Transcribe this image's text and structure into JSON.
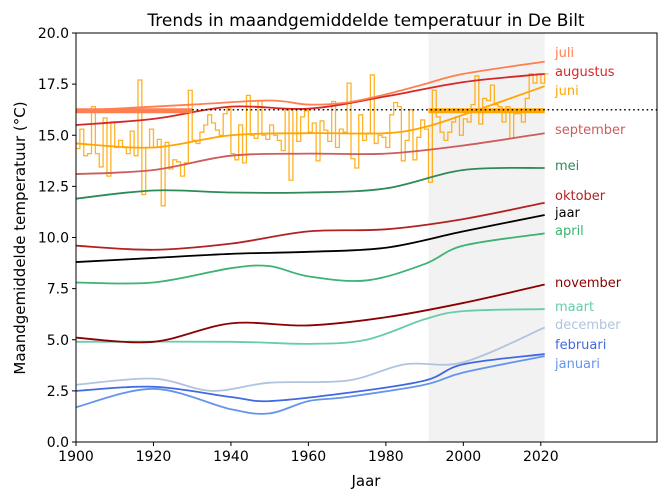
{
  "chart_data": {
    "type": "line",
    "title": "Trends in maandgemiddelde temperatuur in De Bilt",
    "xlabel": "Jaar",
    "ylabel": "Maandgemiddelde temperatuur (°C)",
    "xlim": [
      1900,
      2050
    ],
    "ylim": [
      0,
      20
    ],
    "xticks": [
      "1900",
      "1920",
      "1940",
      "1960",
      "1980",
      "2000",
      "2020"
    ],
    "yticks": [
      "0.0",
      "2.5",
      "5.0",
      "7.5",
      "10.0",
      "12.5",
      "15.0",
      "17.5",
      "20.0"
    ],
    "grid": false,
    "shaded_period": [
      1991,
      2021
    ],
    "reference_line": {
      "y": 16.25,
      "style": "dotted",
      "color": "#000000"
    },
    "normals": [
      {
        "series": "juli",
        "from": 1900,
        "to": 1930,
        "value": 16.2,
        "color": "#ff7f50"
      },
      {
        "series": "juni",
        "from": 1991,
        "to": 2021,
        "value": 16.2,
        "color": "#ffa500"
      }
    ],
    "yearly_series": {
      "series": "juni",
      "color": "#ffa500",
      "start_year": 1900,
      "values": [
        14.35,
        15.3,
        14.0,
        14.1,
        16.4,
        14.1,
        13.45,
        15.85,
        13.0,
        15.65,
        14.4,
        14.75,
        14.4,
        14.1,
        15.2,
        14.0,
        17.7,
        12.1,
        14.4,
        15.3,
        14.4,
        14.8,
        11.55,
        14.65,
        13.35,
        13.8,
        13.7,
        13.0,
        13.65,
        17.2,
        14.75,
        14.6,
        15.15,
        15.5,
        16.0,
        15.6,
        15.25,
        15.0,
        16.05,
        16.3,
        14.1,
        13.8,
        15.5,
        13.65,
        16.95,
        15.0,
        14.85,
        16.7,
        15.0,
        14.8,
        15.5,
        15.0,
        14.75,
        14.25,
        16.25,
        12.8,
        16.3,
        14.7,
        15.9,
        16.2,
        15.15,
        15.6,
        13.75,
        15.7,
        15.25,
        14.7,
        16.65,
        14.4,
        15.3,
        15.15,
        17.55,
        13.85,
        13.4,
        16.0,
        14.75,
        15.1,
        17.95,
        14.6,
        15.0,
        14.9,
        14.4,
        16.0,
        16.6,
        16.4,
        13.75,
        14.75,
        16.25,
        13.8,
        14.9,
        15.75,
        15.3,
        12.7,
        17.2,
        15.9,
        15.15,
        14.75,
        15.15,
        15.65,
        15.9,
        15.0,
        15.8,
        15.65,
        16.5,
        17.9,
        15.55,
        16.8,
        16.7,
        17.45,
        16.5,
        16.4,
        15.65,
        16.4,
        14.85,
        16.05,
        16.05,
        15.65,
        16.8,
        18.0,
        17.55,
        18.0,
        17.55,
        18.0
      ]
    },
    "series": [
      {
        "name": "juli",
        "color": "#ff7f50",
        "x": [
          1900,
          1930,
          1950,
          1960,
          1970,
          1980,
          1990,
          2000,
          2021
        ],
        "y": [
          16.2,
          16.5,
          16.7,
          16.5,
          16.6,
          17.0,
          17.5,
          18.0,
          18.6
        ]
      },
      {
        "name": "augustus",
        "color": "#d62728",
        "x": [
          1900,
          1920,
          1940,
          1960,
          1980,
          2000,
          2021
        ],
        "y": [
          15.5,
          15.8,
          16.4,
          16.3,
          16.9,
          17.6,
          18.0
        ]
      },
      {
        "name": "juni",
        "color": "#ffa500",
        "x": [
          1900,
          1920,
          1940,
          1960,
          1980,
          1990,
          2000,
          2021
        ],
        "y": [
          14.6,
          14.4,
          15.0,
          15.1,
          15.1,
          15.4,
          16.0,
          17.4
        ]
      },
      {
        "name": "september",
        "color": "#cd5c5c",
        "x": [
          1900,
          1920,
          1940,
          1960,
          1980,
          2000,
          2021
        ],
        "y": [
          13.1,
          13.3,
          14.0,
          14.1,
          14.1,
          14.5,
          15.1
        ]
      },
      {
        "name": "mei",
        "color": "#2e8b57",
        "x": [
          1900,
          1920,
          1940,
          1960,
          1980,
          2000,
          2021
        ],
        "y": [
          11.9,
          12.3,
          12.2,
          12.2,
          12.4,
          13.3,
          13.4
        ]
      },
      {
        "name": "oktober",
        "color": "#b22222",
        "x": [
          1900,
          1920,
          1940,
          1960,
          1980,
          2000,
          2021
        ],
        "y": [
          9.6,
          9.4,
          9.7,
          10.3,
          10.4,
          10.9,
          11.7
        ]
      },
      {
        "name": "jaar",
        "color": "#000000",
        "x": [
          1900,
          1920,
          1940,
          1960,
          1980,
          2000,
          2021
        ],
        "y": [
          8.8,
          9.0,
          9.2,
          9.3,
          9.5,
          10.3,
          11.1
        ]
      },
      {
        "name": "april",
        "color": "#3cb371",
        "x": [
          1900,
          1920,
          1940,
          1950,
          1960,
          1975,
          1990,
          2000,
          2021
        ],
        "y": [
          7.8,
          7.8,
          8.5,
          8.6,
          8.1,
          7.9,
          8.7,
          9.6,
          10.2
        ]
      },
      {
        "name": "november",
        "color": "#8b0000",
        "x": [
          1900,
          1920,
          1940,
          1960,
          1980,
          2000,
          2021
        ],
        "y": [
          5.1,
          4.9,
          5.8,
          5.7,
          6.1,
          6.8,
          7.7
        ]
      },
      {
        "name": "maart",
        "color": "#66cdaa",
        "x": [
          1900,
          1940,
          1960,
          1975,
          1990,
          2000,
          2021
        ],
        "y": [
          4.9,
          4.9,
          4.8,
          5.0,
          6.0,
          6.4,
          6.5
        ]
      },
      {
        "name": "december",
        "color": "#b0c4de",
        "x": [
          1900,
          1920,
          1935,
          1950,
          1970,
          1985,
          2000,
          2021
        ],
        "y": [
          2.8,
          3.1,
          2.5,
          2.9,
          3.0,
          3.8,
          3.9,
          5.6
        ]
      },
      {
        "name": "februari",
        "color": "#4169e1",
        "x": [
          1900,
          1920,
          1940,
          1950,
          1970,
          1990,
          2000,
          2021
        ],
        "y": [
          2.5,
          2.7,
          2.2,
          2.0,
          2.4,
          3.0,
          3.8,
          4.3
        ]
      },
      {
        "name": "januari",
        "color": "#6495ed",
        "x": [
          1900,
          1920,
          1940,
          1950,
          1960,
          1970,
          1990,
          2000,
          2021
        ],
        "y": [
          1.7,
          2.6,
          1.6,
          1.4,
          2.0,
          2.2,
          2.8,
          3.4,
          4.2
        ]
      }
    ]
  }
}
